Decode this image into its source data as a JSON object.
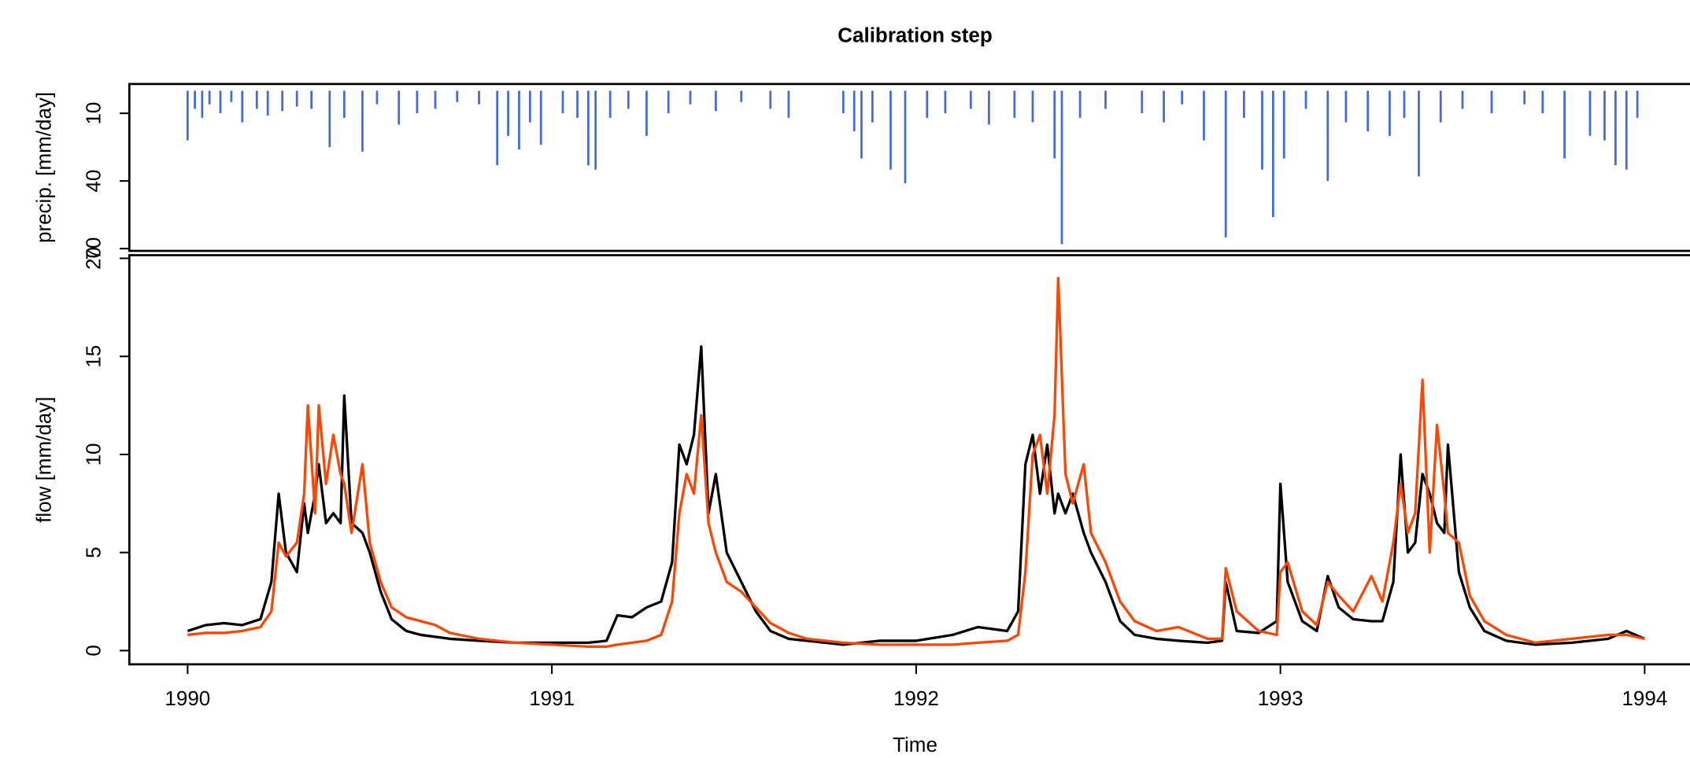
{
  "chart_data": [
    {
      "type": "bar",
      "title": "Calibration step",
      "y_label": "precip. [mm/day]",
      "inverted": true,
      "color": "#4169e1",
      "xlim": [
        1989.84,
        1994.16
      ],
      "ylim": [
        -3,
        71
      ],
      "yticks": [
        10,
        40,
        70
      ],
      "x": [
        1990.0,
        1990.02,
        1990.04,
        1990.06,
        1990.09,
        1990.12,
        1990.15,
        1990.19,
        1990.22,
        1990.26,
        1990.3,
        1990.34,
        1990.39,
        1990.43,
        1990.48,
        1990.52,
        1990.58,
        1990.63,
        1990.68,
        1990.74,
        1990.8,
        1990.85,
        1990.88,
        1990.91,
        1990.94,
        1990.97,
        1991.03,
        1991.07,
        1991.1,
        1991.12,
        1991.16,
        1991.21,
        1991.26,
        1991.32,
        1991.38,
        1991.45,
        1991.52,
        1991.6,
        1991.65,
        1991.8,
        1991.83,
        1991.85,
        1991.88,
        1991.93,
        1991.97,
        1992.03,
        1992.08,
        1992.15,
        1992.2,
        1992.27,
        1992.32,
        1992.38,
        1992.4,
        1992.45,
        1992.52,
        1992.62,
        1992.68,
        1992.73,
        1992.79,
        1992.85,
        1992.9,
        1992.95,
        1992.98,
        1993.01,
        1993.07,
        1993.13,
        1993.18,
        1993.24,
        1993.3,
        1993.34,
        1993.38,
        1993.44,
        1993.5,
        1993.58,
        1993.67,
        1993.72,
        1993.78,
        1993.85,
        1993.89,
        1993.92,
        1993.95,
        1993.98
      ],
      "values": [
        22,
        8,
        12,
        6,
        10,
        5,
        14,
        8,
        11,
        9,
        7,
        8,
        25,
        12,
        27,
        6,
        15,
        10,
        8,
        5,
        6,
        33,
        20,
        26,
        14,
        24,
        10,
        12,
        33,
        35,
        12,
        8,
        20,
        10,
        6,
        9,
        5,
        8,
        12,
        10,
        18,
        30,
        14,
        35,
        41,
        12,
        10,
        8,
        15,
        12,
        14,
        30,
        68,
        12,
        8,
        10,
        14,
        6,
        22,
        65,
        12,
        35,
        56,
        30,
        8,
        40,
        14,
        18,
        20,
        12,
        38,
        14,
        8,
        10,
        6,
        10,
        30,
        20,
        22,
        33,
        35,
        12
      ]
    },
    {
      "type": "line",
      "y_label": "flow [mm/day]",
      "x_label": "Time",
      "xlim": [
        1989.84,
        1994.16
      ],
      "ylim": [
        -0.7,
        20.16
      ],
      "yticks": [
        0,
        5,
        10,
        15,
        20
      ],
      "xticks": [
        1990,
        1991,
        1992,
        1993,
        1994
      ],
      "x": [
        1990.0,
        1990.05,
        1990.1,
        1990.15,
        1990.2,
        1990.23,
        1990.25,
        1990.27,
        1990.3,
        1990.32,
        1990.33,
        1990.35,
        1990.36,
        1990.38,
        1990.4,
        1990.42,
        1990.43,
        1990.45,
        1990.48,
        1990.5,
        1990.53,
        1990.56,
        1990.6,
        1990.64,
        1990.68,
        1990.72,
        1990.8,
        1990.9,
        1991.0,
        1991.1,
        1991.15,
        1991.18,
        1991.22,
        1991.26,
        1991.3,
        1991.33,
        1991.35,
        1991.37,
        1991.39,
        1991.41,
        1991.43,
        1991.45,
        1991.48,
        1991.52,
        1991.56,
        1991.6,
        1991.65,
        1991.7,
        1991.8,
        1991.9,
        1992.0,
        1992.1,
        1992.17,
        1992.25,
        1992.28,
        1992.3,
        1992.32,
        1992.34,
        1992.36,
        1992.38,
        1992.39,
        1992.41,
        1992.43,
        1992.46,
        1992.48,
        1992.52,
        1992.56,
        1992.6,
        1992.66,
        1992.72,
        1992.8,
        1992.84,
        1992.85,
        1992.88,
        1992.94,
        1992.99,
        1993.0,
        1993.02,
        1993.06,
        1993.1,
        1993.13,
        1993.16,
        1993.2,
        1993.25,
        1993.28,
        1993.31,
        1993.33,
        1993.35,
        1993.37,
        1993.39,
        1993.41,
        1993.43,
        1993.45,
        1993.46,
        1993.49,
        1993.52,
        1993.56,
        1993.62,
        1993.7,
        1993.8,
        1993.9,
        1993.95,
        1994.0
      ],
      "series": [
        {
          "color": "#000000",
          "values": [
            1.0,
            1.3,
            1.4,
            1.3,
            1.6,
            3.5,
            8.0,
            5.0,
            4.0,
            7.5,
            6.0,
            8.0,
            9.5,
            6.5,
            7.0,
            6.5,
            13.0,
            6.5,
            6.0,
            5.0,
            3.0,
            1.6,
            1.0,
            0.8,
            0.7,
            0.6,
            0.5,
            0.4,
            0.4,
            0.4,
            0.5,
            1.8,
            1.7,
            2.2,
            2.5,
            4.5,
            10.5,
            9.5,
            11.0,
            15.5,
            7.0,
            9.0,
            5.0,
            3.5,
            2.0,
            1.0,
            0.6,
            0.5,
            0.3,
            0.5,
            0.5,
            0.8,
            1.2,
            1.0,
            2.0,
            9.5,
            11.0,
            8.0,
            10.5,
            7.0,
            8.0,
            7.0,
            8.0,
            6.0,
            5.0,
            3.5,
            1.5,
            0.8,
            0.6,
            0.5,
            0.4,
            0.5,
            3.5,
            1.0,
            0.9,
            1.5,
            8.5,
            3.5,
            1.5,
            1.0,
            3.8,
            2.2,
            1.6,
            1.5,
            1.5,
            3.5,
            10.0,
            5.0,
            5.5,
            9.0,
            8.0,
            6.5,
            6.0,
            10.5,
            4.0,
            2.2,
            1.0,
            0.5,
            0.3,
            0.4,
            0.6,
            1.0,
            0.6
          ]
        },
        {
          "color": "#ff4500",
          "values": [
            0.8,
            0.9,
            0.9,
            1.0,
            1.2,
            2.0,
            5.5,
            4.8,
            5.5,
            8.0,
            12.5,
            7.0,
            12.5,
            8.5,
            11.0,
            9.0,
            8.5,
            6.0,
            9.5,
            5.5,
            3.5,
            2.2,
            1.7,
            1.5,
            1.3,
            0.9,
            0.6,
            0.4,
            0.3,
            0.2,
            0.2,
            0.3,
            0.4,
            0.5,
            0.8,
            2.5,
            7.0,
            9.0,
            8.0,
            12.0,
            6.5,
            5.0,
            3.5,
            3.0,
            2.2,
            1.4,
            0.9,
            0.6,
            0.4,
            0.3,
            0.3,
            0.3,
            0.4,
            0.5,
            0.8,
            4.0,
            10.0,
            11.0,
            8.0,
            12.0,
            19.0,
            9.0,
            7.5,
            9.5,
            6.0,
            4.5,
            2.5,
            1.5,
            1.0,
            1.2,
            0.6,
            0.6,
            4.2,
            2.0,
            1.0,
            0.8,
            4.0,
            4.5,
            2.0,
            1.3,
            3.5,
            2.8,
            2.0,
            3.8,
            2.5,
            5.5,
            8.5,
            6.0,
            7.0,
            13.8,
            5.0,
            11.5,
            8.0,
            6.0,
            5.5,
            2.8,
            1.5,
            0.8,
            0.4,
            0.6,
            0.8,
            0.8,
            0.6
          ]
        }
      ]
    }
  ]
}
